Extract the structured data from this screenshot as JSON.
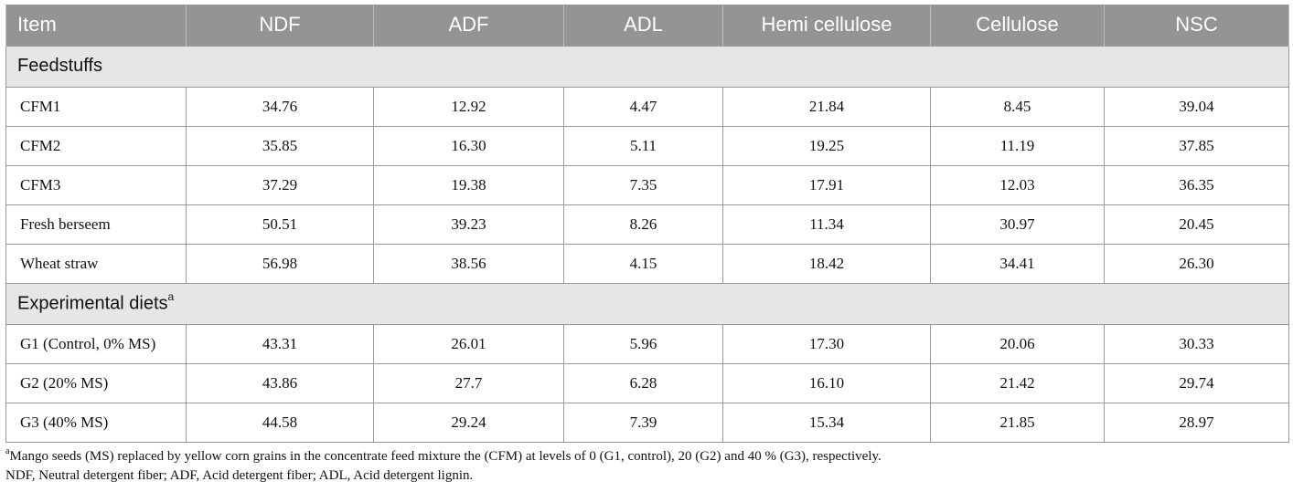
{
  "table": {
    "headers": [
      "Item",
      "NDF",
      "ADF",
      "ADL",
      "Hemi cellulose",
      "Cellulose",
      "NSC"
    ],
    "sections": [
      {
        "title": "Feedstuffs",
        "title_sup": "",
        "rows": [
          [
            "CFM1",
            "34.76",
            "12.92",
            "4.47",
            "21.84",
            "8.45",
            "39.04"
          ],
          [
            "CFM2",
            "35.85",
            "16.30",
            "5.11",
            "19.25",
            "11.19",
            "37.85"
          ],
          [
            "CFM3",
            "37.29",
            "19.38",
            "7.35",
            "17.91",
            "12.03",
            "36.35"
          ],
          [
            "Fresh berseem",
            "50.51",
            "39.23",
            "8.26",
            "11.34",
            "30.97",
            "20.45"
          ],
          [
            "Wheat straw",
            "56.98",
            "38.56",
            "4.15",
            "18.42",
            "34.41",
            "26.30"
          ]
        ]
      },
      {
        "title": "Experimental diets",
        "title_sup": "a",
        "rows": [
          [
            "G1 (Control, 0% MS)",
            "43.31",
            "26.01",
            "5.96",
            "17.30",
            "20.06",
            "30.33"
          ],
          [
            "G2 (20% MS)",
            "43.86",
            "27.7",
            "6.28",
            "16.10",
            "21.42",
            "29.74"
          ],
          [
            "G3 (40% MS)",
            "44.58",
            "29.24",
            "7.39",
            "15.34",
            "21.85",
            "28.97"
          ]
        ]
      }
    ]
  },
  "footnotes": {
    "note_a_marker": "a",
    "note_a_text": "Mango seeds (MS) replaced by yellow corn grains in the concentrate feed mixture the (CFM) at levels of 0 (G1, control), 20 (G2) and 40 % (G3), respectively.",
    "abbreviations": "NDF, Neutral detergent fiber; ADF, Acid detergent fiber; ADL, Acid detergent lignin."
  },
  "colors": {
    "header_bg": "#949494",
    "section_bg": "#e6e6e6",
    "border": "#9a9a9a"
  }
}
